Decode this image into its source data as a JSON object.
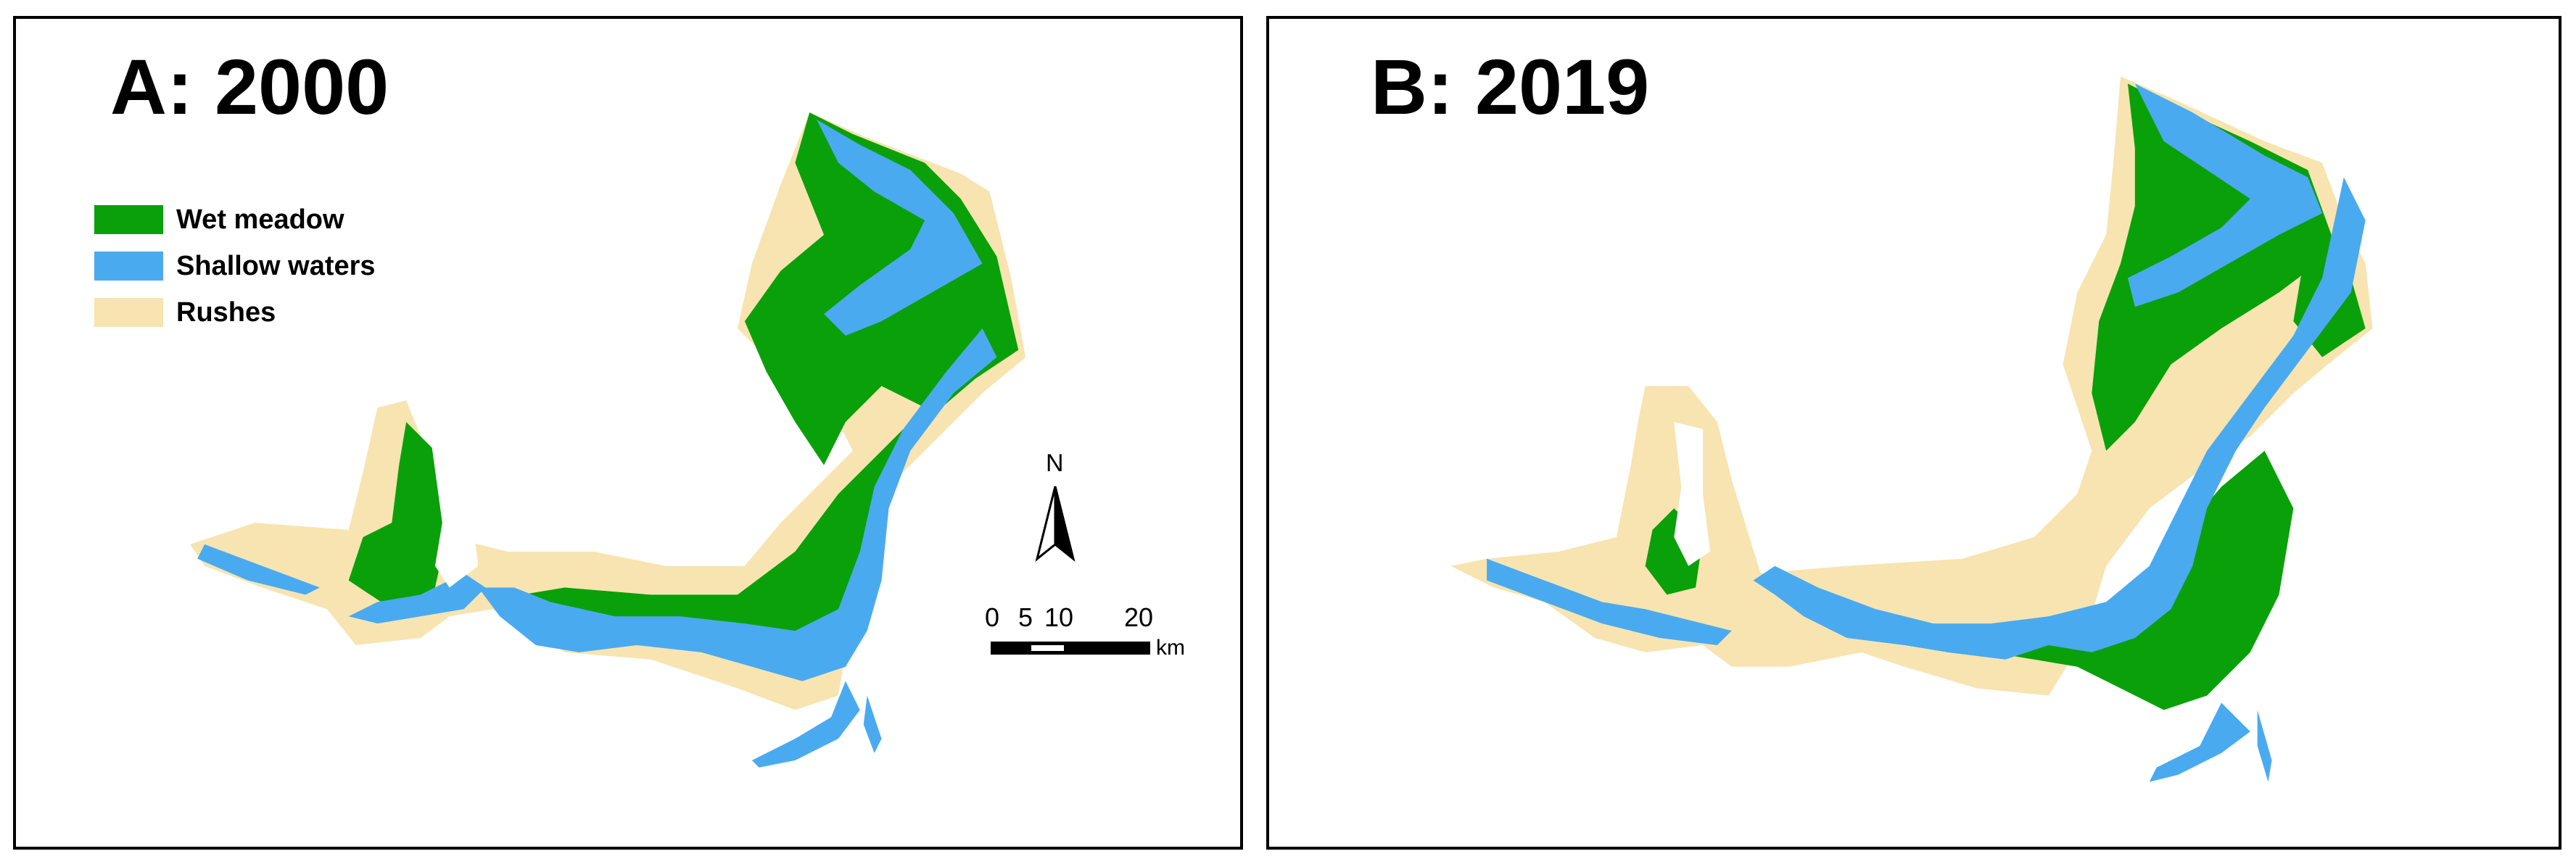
{
  "panels": {
    "a": {
      "title": "A: 2000"
    },
    "b": {
      "title": "B: 2019"
    }
  },
  "legend": [
    {
      "label": "Wet meadow",
      "color": "#0aa00a"
    },
    {
      "label": "Shallow waters",
      "color": "#4aaaf0"
    },
    {
      "label": "Rushes",
      "color": "#f8e4b0"
    }
  ],
  "north_arrow": {
    "label": "N"
  },
  "scale_bar": {
    "ticks": [
      "0",
      "5",
      "10",
      "20"
    ],
    "unit": "km"
  },
  "colors": {
    "wet_meadow": "#0aa00a",
    "shallow_waters": "#4aaaf0",
    "rushes": "#f8e4b0"
  }
}
